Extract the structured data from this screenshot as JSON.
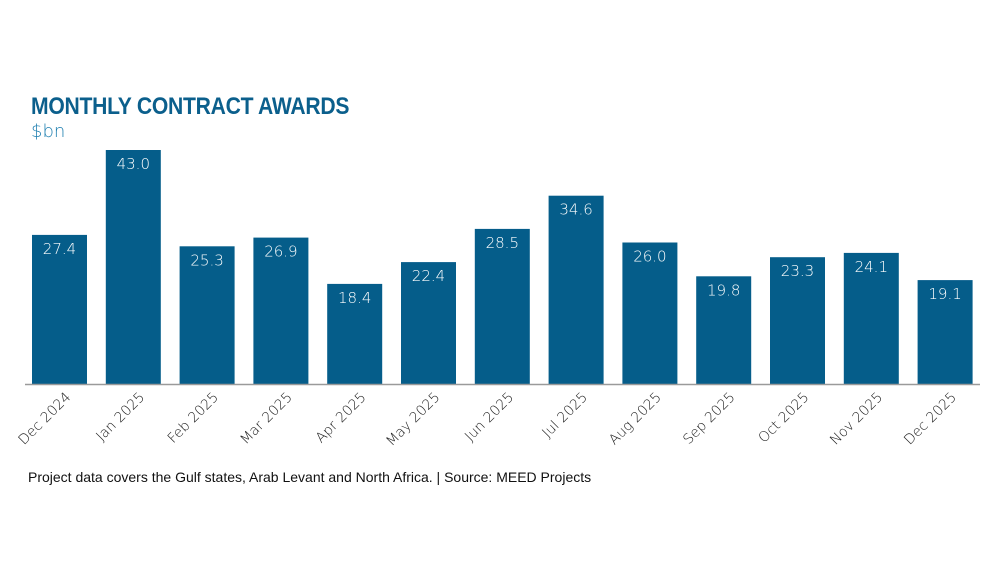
{
  "chart_data": {
    "type": "bar",
    "title": "MONTHLY CONTRACT AWARDS",
    "subtitle": "$bn",
    "xlabel": "",
    "ylabel": "$bn",
    "ylim": [
      0,
      43.0
    ],
    "grid": false,
    "categories": [
      "Dec 2024",
      "Jan 2025",
      "Feb 2025",
      "Mar 2025",
      "Apr 2025",
      "May 2025",
      "Jun 2025",
      "Jul 2025",
      "Aug 2025",
      "Sep 2025",
      "Oct 2025",
      "Nov 2025",
      "Dec 2025"
    ],
    "values": [
      27.4,
      43.0,
      25.3,
      26.9,
      18.4,
      22.4,
      28.5,
      34.6,
      26.0,
      19.8,
      23.3,
      24.1,
      19.1
    ],
    "value_labels": [
      "27.4",
      "43.0",
      "25.3",
      "26.9",
      "18.4",
      "22.4",
      "28.5",
      "34.6",
      "26.0",
      "19.8",
      "23.3",
      "24.1",
      "19.1"
    ],
    "bar_color": "#055d8a",
    "label_color": "#ffffff"
  },
  "footer": {
    "note": "Project data covers the Gulf states, Arab Levant and North Africa. | Source: MEED Projects"
  },
  "colors": {
    "title": "#0b5f8c",
    "subtitle": "#1f7fb0",
    "axis": "#9a9a9a"
  }
}
